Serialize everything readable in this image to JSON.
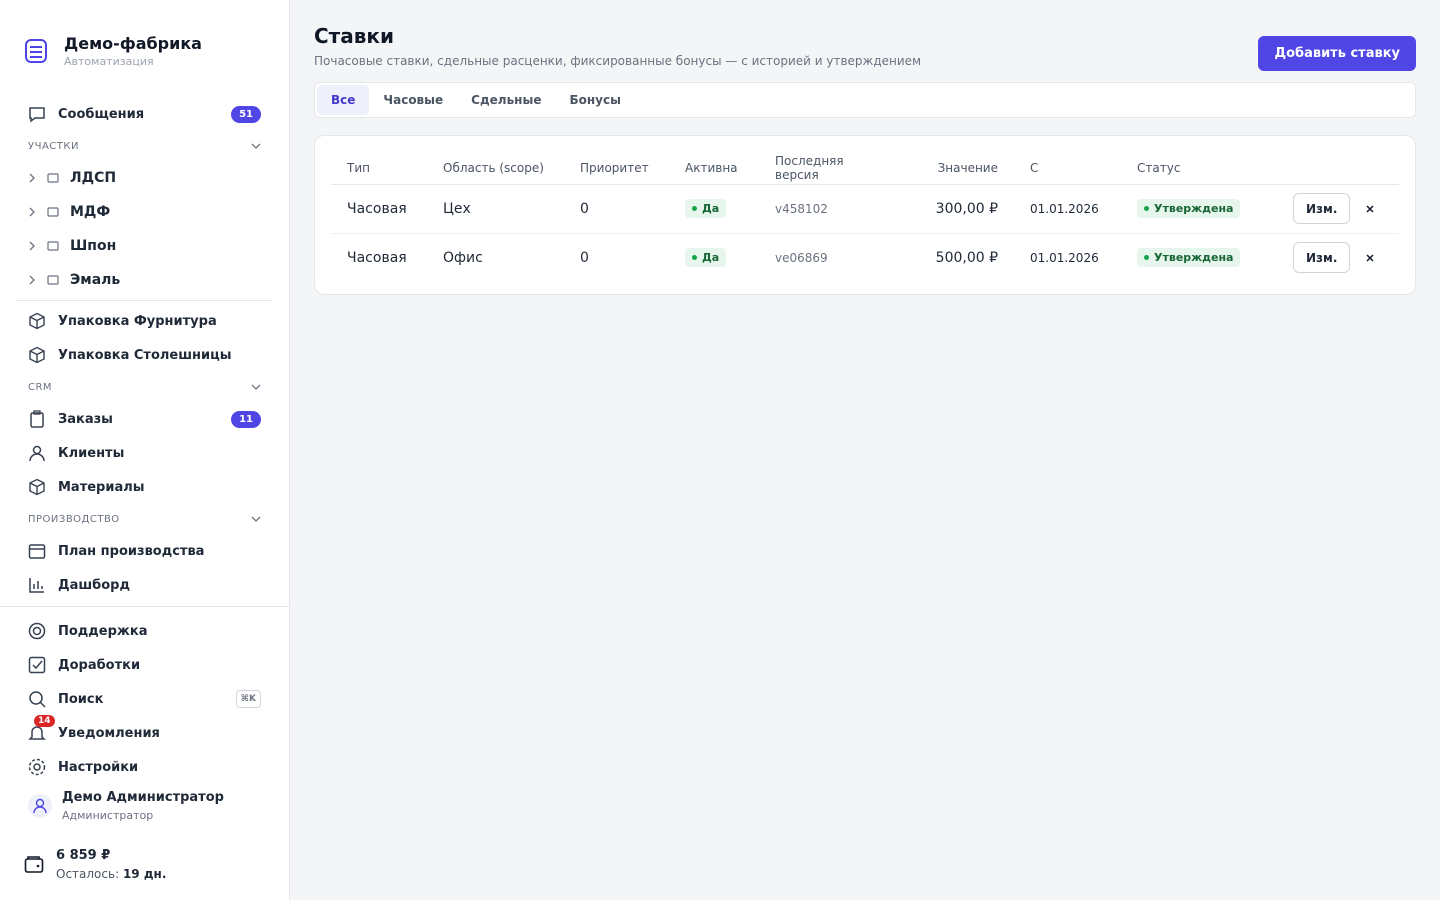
{
  "brand": {
    "title": "Демо-фабрика",
    "subtitle": "Автоматизация"
  },
  "nav": {
    "messages": {
      "label": "Сообщения",
      "badge": 51
    },
    "sites_title": "УЧАСТКИ",
    "sites": [
      "ЛДСП",
      "МДФ",
      "Шпон",
      "Эмаль"
    ],
    "packing": [
      "Упаковка Фурнитура",
      "Упаковка Столешницы"
    ],
    "crm_title": "CRM",
    "crm": [
      {
        "label": "Заказы",
        "badge": 11
      },
      {
        "label": "Клиенты"
      },
      {
        "label": "Материалы"
      }
    ],
    "production_title": "ПРОИЗВОДСТВО",
    "production": [
      "План производства",
      "Дашборд"
    ]
  },
  "footer_nav": {
    "support": "Поддержка",
    "improvements": "Доработки",
    "search": {
      "label": "Поиск",
      "shortcut": "⌘K"
    },
    "notifications": {
      "label": "Уведомления",
      "badge": 14
    },
    "settings": "Настройки"
  },
  "user": {
    "name": "Демо Администратор",
    "role": "Администратор"
  },
  "balance": {
    "amount": "6 859 ₽",
    "remaining_label": "Осталось:",
    "remaining_value": "19 дн."
  },
  "header": {
    "title": "Ставки",
    "subtitle": "Почасовые ставки, сдельные расценки, фиксированные бонусы — с историей и утверждением",
    "add_button": "Добавить ставку"
  },
  "tabs": [
    "Все",
    "Часовые",
    "Сдельные",
    "Бонусы"
  ],
  "table": {
    "columns": [
      "Тип",
      "Область (scope)",
      "Приоритет",
      "Активна",
      "Последняя версия",
      "Значение",
      "С",
      "Статус"
    ],
    "rows": [
      {
        "type": "Часовая",
        "scope": "Цех",
        "priority": 0,
        "active": "Да",
        "version": "v458102",
        "value": "300,00 ₽",
        "from": "01.01.2026",
        "status": "Утверждена",
        "edit": "Изм."
      },
      {
        "type": "Часовая",
        "scope": "Офис",
        "priority": 0,
        "active": "Да",
        "version": "ve06869",
        "value": "500,00 ₽",
        "from": "01.01.2026",
        "status": "Утверждена",
        "edit": "Изм."
      }
    ]
  }
}
